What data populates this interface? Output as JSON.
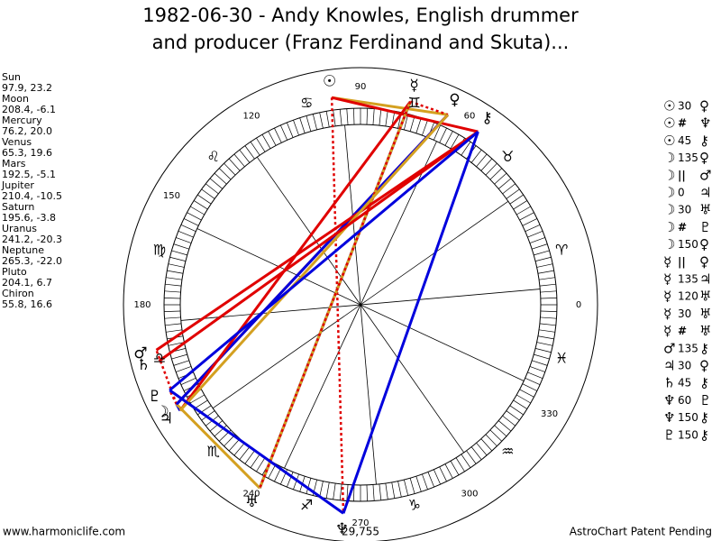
{
  "title": [
    "1982-06-30 - Andy Knowles, English drummer",
    "and producer (Franz Ferdinand and Skuta)..."
  ],
  "planets": [
    {
      "name": "Sun",
      "glyph": "☉",
      "position": "97.9, 23.2"
    },
    {
      "name": "Moon",
      "glyph": "☽",
      "position": "208.4, -6.1"
    },
    {
      "name": "Mercury",
      "glyph": "☿",
      "position": "76.2, 20.0"
    },
    {
      "name": "Venus",
      "glyph": "♀",
      "position": "65.3, 19.6"
    },
    {
      "name": "Mars",
      "glyph": "♂",
      "position": "192.5, -5.1"
    },
    {
      "name": "Jupiter",
      "glyph": "♃",
      "position": "210.4, -10.5"
    },
    {
      "name": "Saturn",
      "glyph": "♄",
      "position": "195.6, -3.8"
    },
    {
      "name": "Uranus",
      "glyph": "♅",
      "position": "241.2, -20.3"
    },
    {
      "name": "Neptune",
      "glyph": "♆",
      "position": "265.3, -22.0"
    },
    {
      "name": "Pluto",
      "glyph": "♇",
      "position": "204.1, 6.7"
    },
    {
      "name": "Chiron",
      "glyph": "⚷",
      "position": "55.8, 16.6"
    }
  ],
  "aspects": [
    {
      "from": "☉",
      "angle": "30",
      "to": "♀",
      "color": "#d4a020",
      "dashed": false
    },
    {
      "from": "☉",
      "angle": "#",
      "to": "♆",
      "color": "#e00000",
      "dashed": true
    },
    {
      "from": "☉",
      "angle": "45",
      "to": "⚷",
      "color": "#e00000",
      "dashed": false
    },
    {
      "from": "☽",
      "angle": "135",
      "to": "♀",
      "color": "#e00000",
      "dashed": false
    },
    {
      "from": "☽",
      "angle": "||",
      "to": "♂",
      "color": "#e00000",
      "dashed": true
    },
    {
      "from": "☽",
      "angle": "0",
      "to": "♃",
      "color": "#0000dd",
      "dashed": false
    },
    {
      "from": "☽",
      "angle": "30",
      "to": "♅",
      "color": "#d4a020",
      "dashed": false
    },
    {
      "from": "☽",
      "angle": "#",
      "to": "♇",
      "color": "#e00000",
      "dashed": true
    },
    {
      "from": "☽",
      "angle": "150",
      "to": "♀",
      "color": "#0000dd",
      "dashed": false
    },
    {
      "from": "☿",
      "angle": "||",
      "to": "♀",
      "color": "#e00000",
      "dashed": true
    },
    {
      "from": "☿",
      "angle": "135",
      "to": "♃",
      "color": "#e00000",
      "dashed": false
    },
    {
      "from": "☿",
      "angle": "120",
      "to": "♅",
      "color": "#0000dd",
      "dashed": false
    },
    {
      "from": "☿",
      "angle": "30",
      "to": "♅",
      "color": "#d4a020",
      "dashed": false
    },
    {
      "from": "☿",
      "angle": "#",
      "to": "♅",
      "color": "#e00000",
      "dashed": true
    },
    {
      "from": "♂",
      "angle": "135",
      "to": "⚷",
      "color": "#e00000",
      "dashed": false
    },
    {
      "from": "♃",
      "angle": "30",
      "to": "♀",
      "color": "#d4a020",
      "dashed": false
    },
    {
      "from": "♄",
      "angle": "45",
      "to": "⚷",
      "color": "#e00000",
      "dashed": false
    },
    {
      "from": "♆",
      "angle": "60",
      "to": "♇",
      "color": "#0000dd",
      "dashed": false
    },
    {
      "from": "♆",
      "angle": "150",
      "to": "⚷",
      "color": "#0000dd",
      "dashed": false
    },
    {
      "from": "♇",
      "angle": "150",
      "to": "⚷",
      "color": "#0000dd",
      "dashed": false
    }
  ],
  "degree_labels": [
    0,
    60,
    90,
    120,
    150,
    180,
    240,
    270,
    300,
    330
  ],
  "zodiac": [
    "♈",
    "♉",
    "♊",
    "♋",
    "♌",
    "♍",
    "♎",
    "♏",
    "♐",
    "♑",
    "♒",
    "♓"
  ],
  "count": "29,755",
  "footer": {
    "left": "www.harmoniclife.com",
    "right": "AstroChart Patent Pending"
  }
}
